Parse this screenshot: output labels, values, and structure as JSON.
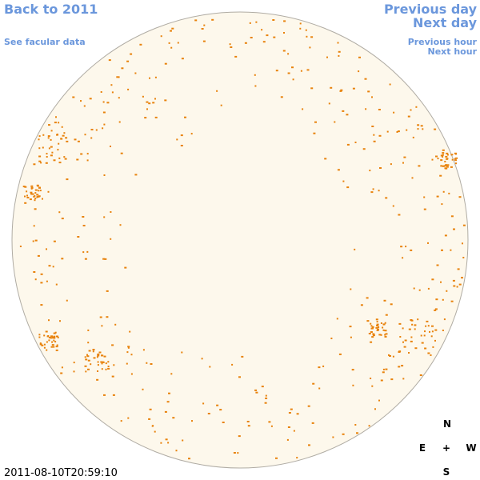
{
  "nav": {
    "back": "Back to 2011",
    "facular": "See facular data",
    "previous_day": "Previous day",
    "next_day": "Next day",
    "previous_hour": "Previous hour",
    "next_hour": "Next hour"
  },
  "timestamp": "2011-08-10T20:59:10",
  "compass": {
    "north": "N",
    "east": "E",
    "center": "+",
    "west": "W",
    "south": "S"
  }
}
